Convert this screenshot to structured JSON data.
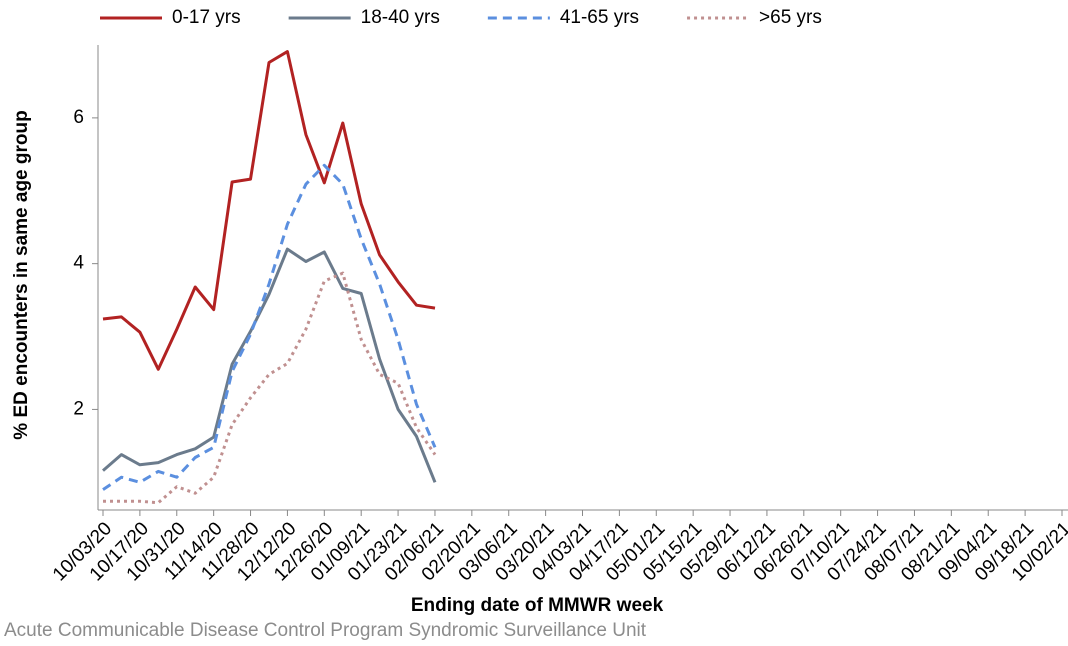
{
  "chart_data": {
    "type": "line",
    "xlabel": "Ending date of MMWR week",
    "ylabel": "% ED encounters in same age group",
    "source": "Acute Communicable Disease Control Program Syndromic Surveillance Unit",
    "categories": [
      "10/03/20",
      null,
      "10/17/20",
      null,
      "10/31/20",
      null,
      "11/14/20",
      null,
      "11/28/20",
      null,
      "12/12/20",
      null,
      "12/26/20",
      null,
      "01/09/21",
      null,
      "01/23/21",
      null,
      "02/06/21",
      null,
      "02/20/21",
      null,
      "03/06/21",
      null,
      "03/20/21",
      null,
      "04/03/21",
      null,
      "04/17/21",
      null,
      "05/01/21",
      null,
      "05/15/21",
      null,
      "05/29/21",
      null,
      "06/12/21",
      null,
      "06/26/21",
      null,
      "07/10/21",
      null,
      "07/24/21",
      null,
      "08/07/21",
      null,
      "08/21/21",
      null,
      "09/04/21",
      null,
      "09/18/21",
      null,
      "10/02/21"
    ],
    "series": [
      {
        "name": "0-17 yrs",
        "color": "#b22222",
        "style": "solid",
        "values": [
          3.24,
          3.27,
          3.06,
          2.55,
          3.1,
          3.68,
          3.37,
          5.12,
          5.16,
          6.76,
          6.91,
          5.77,
          5.11,
          5.93,
          4.82,
          4.12,
          3.75,
          3.43,
          3.39,
          null,
          null,
          null,
          null,
          null,
          null,
          null,
          null,
          null,
          null,
          null,
          null,
          null,
          null,
          null,
          null,
          null,
          null,
          null,
          null,
          null,
          null,
          null,
          null,
          null,
          null,
          null,
          null,
          null,
          null,
          null,
          null,
          null,
          null
        ]
      },
      {
        "name": "18-40 yrs",
        "color": "#6b7b8c",
        "style": "solid",
        "values": [
          1.16,
          1.38,
          1.24,
          1.27,
          1.38,
          1.46,
          1.62,
          2.62,
          3.07,
          3.58,
          4.2,
          4.03,
          4.16,
          3.66,
          3.59,
          2.69,
          2.0,
          1.63,
          1.0,
          null,
          null,
          null,
          null,
          null,
          null,
          null,
          null,
          null,
          null,
          null,
          null,
          null,
          null,
          null,
          null,
          null,
          null,
          null,
          null,
          null,
          null,
          null,
          null,
          null,
          null,
          null,
          null,
          null,
          null,
          null,
          null,
          null,
          null
        ]
      },
      {
        "name": "41-65 yrs",
        "color": "#5b8fdf",
        "style": "dashed",
        "values": [
          0.9,
          1.07,
          1.0,
          1.15,
          1.07,
          1.34,
          1.48,
          2.52,
          3.03,
          3.72,
          4.54,
          5.09,
          5.35,
          5.09,
          4.34,
          3.72,
          2.96,
          2.07,
          1.48,
          null,
          null,
          null,
          null,
          null,
          null,
          null,
          null,
          null,
          null,
          null,
          null,
          null,
          null,
          null,
          null,
          null,
          null,
          null,
          null,
          null,
          null,
          null,
          null,
          null,
          null,
          null,
          null,
          null,
          null,
          null,
          null,
          null,
          null
        ]
      },
      {
        "name": ">65 yrs",
        "color": "#c09090",
        "style": "dotted",
        "values": [
          0.74,
          0.74,
          0.74,
          0.72,
          0.94,
          0.85,
          1.07,
          1.79,
          2.16,
          2.48,
          2.63,
          3.1,
          3.76,
          3.87,
          2.96,
          2.48,
          2.36,
          1.75,
          1.38,
          null,
          null,
          null,
          null,
          null,
          null,
          null,
          null,
          null,
          null,
          null,
          null,
          null,
          null,
          null,
          null,
          null,
          null,
          null,
          null,
          null,
          null,
          null,
          null,
          null,
          null,
          null,
          null,
          null,
          null,
          null,
          null,
          null,
          null
        ]
      }
    ],
    "ylim": [
      0.62,
      7.0
    ],
    "yticks": [
      2,
      4,
      6
    ],
    "grid": false,
    "legend": "top"
  }
}
